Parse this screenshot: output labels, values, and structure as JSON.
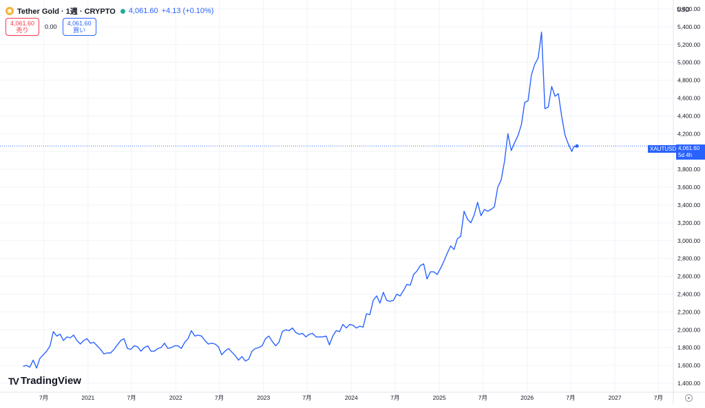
{
  "header": {
    "title": "Tether Gold · 1週 · CRYPTO",
    "price": "4,061.60",
    "change": "+4.13 (+0.10%)"
  },
  "trade": {
    "sell_price": "4,061.60",
    "sell_label": "売り",
    "spread": "0.00",
    "buy_price": "4,061.60",
    "buy_label": "買い"
  },
  "currency": "USD",
  "price_tag": {
    "symbol": "XAUTUSD",
    "price": "4,061.60",
    "countdown": "5d 4h"
  },
  "logo": {
    "text": "TradingView"
  },
  "colors": {
    "line": "#2962ff",
    "grid": "#f0f3fa",
    "axis_text": "#131722"
  },
  "chart_data": {
    "type": "line",
    "series": [
      {
        "values": [
          [
            "2020-04-06",
            1590
          ],
          [
            "2020-04-20",
            1600
          ],
          [
            "2020-05-04",
            1580
          ],
          [
            "2020-05-18",
            1660
          ],
          [
            "2020-06-01",
            1570
          ],
          [
            "2020-06-15",
            1680
          ],
          [
            "2020-06-29",
            1720
          ],
          [
            "2020-07-13",
            1760
          ],
          [
            "2020-07-27",
            1820
          ],
          [
            "2020-08-10",
            1980
          ],
          [
            "2020-08-24",
            1930
          ],
          [
            "2020-09-07",
            1950
          ],
          [
            "2020-09-21",
            1880
          ],
          [
            "2020-10-05",
            1920
          ],
          [
            "2020-10-19",
            1910
          ],
          [
            "2020-11-02",
            1940
          ],
          [
            "2020-11-16",
            1880
          ],
          [
            "2020-11-30",
            1840
          ],
          [
            "2020-12-14",
            1880
          ],
          [
            "2020-12-28",
            1900
          ],
          [
            "2021-01-11",
            1850
          ],
          [
            "2021-01-25",
            1860
          ],
          [
            "2021-02-08",
            1820
          ],
          [
            "2021-02-22",
            1780
          ],
          [
            "2021-03-08",
            1730
          ],
          [
            "2021-03-22",
            1740
          ],
          [
            "2021-04-05",
            1740
          ],
          [
            "2021-04-19",
            1780
          ],
          [
            "2021-05-03",
            1830
          ],
          [
            "2021-05-17",
            1880
          ],
          [
            "2021-05-31",
            1900
          ],
          [
            "2021-06-14",
            1790
          ],
          [
            "2021-06-28",
            1780
          ],
          [
            "2021-07-12",
            1820
          ],
          [
            "2021-07-26",
            1810
          ],
          [
            "2021-08-09",
            1760
          ],
          [
            "2021-08-23",
            1800
          ],
          [
            "2021-09-06",
            1820
          ],
          [
            "2021-09-20",
            1760
          ],
          [
            "2021-10-04",
            1760
          ],
          [
            "2021-10-18",
            1790
          ],
          [
            "2021-11-01",
            1800
          ],
          [
            "2021-11-15",
            1850
          ],
          [
            "2021-11-29",
            1790
          ],
          [
            "2021-12-13",
            1800
          ],
          [
            "2021-12-27",
            1820
          ],
          [
            "2022-01-10",
            1820
          ],
          [
            "2022-01-24",
            1790
          ],
          [
            "2022-02-07",
            1860
          ],
          [
            "2022-02-21",
            1900
          ],
          [
            "2022-03-07",
            1990
          ],
          [
            "2022-03-21",
            1930
          ],
          [
            "2022-04-04",
            1940
          ],
          [
            "2022-04-18",
            1930
          ],
          [
            "2022-05-02",
            1880
          ],
          [
            "2022-05-16",
            1840
          ],
          [
            "2022-05-30",
            1850
          ],
          [
            "2022-06-13",
            1840
          ],
          [
            "2022-06-27",
            1810
          ],
          [
            "2022-07-11",
            1720
          ],
          [
            "2022-07-25",
            1760
          ],
          [
            "2022-08-08",
            1790
          ],
          [
            "2022-08-22",
            1750
          ],
          [
            "2022-09-05",
            1710
          ],
          [
            "2022-09-19",
            1660
          ],
          [
            "2022-10-03",
            1700
          ],
          [
            "2022-10-17",
            1650
          ],
          [
            "2022-10-31",
            1670
          ],
          [
            "2022-11-14",
            1760
          ],
          [
            "2022-11-28",
            1790
          ],
          [
            "2022-12-12",
            1800
          ],
          [
            "2022-12-26",
            1820
          ],
          [
            "2023-01-09",
            1900
          ],
          [
            "2023-01-23",
            1930
          ],
          [
            "2023-02-06",
            1870
          ],
          [
            "2023-02-20",
            1820
          ],
          [
            "2023-03-06",
            1860
          ],
          [
            "2023-03-20",
            1980
          ],
          [
            "2023-04-03",
            2000
          ],
          [
            "2023-04-17",
            1990
          ],
          [
            "2023-05-01",
            2020
          ],
          [
            "2023-05-15",
            1970
          ],
          [
            "2023-05-29",
            1950
          ],
          [
            "2023-06-12",
            1960
          ],
          [
            "2023-06-26",
            1920
          ],
          [
            "2023-07-10",
            1950
          ],
          [
            "2023-07-24",
            1960
          ],
          [
            "2023-08-07",
            1920
          ],
          [
            "2023-08-21",
            1920
          ],
          [
            "2023-09-04",
            1920
          ],
          [
            "2023-09-18",
            1930
          ],
          [
            "2023-10-02",
            1830
          ],
          [
            "2023-10-16",
            1930
          ],
          [
            "2023-10-30",
            1990
          ],
          [
            "2023-11-13",
            1980
          ],
          [
            "2023-11-27",
            2060
          ],
          [
            "2023-12-11",
            2020
          ],
          [
            "2023-12-25",
            2060
          ],
          [
            "2024-01-08",
            2050
          ],
          [
            "2024-01-22",
            2020
          ],
          [
            "2024-02-05",
            2040
          ],
          [
            "2024-02-19",
            2030
          ],
          [
            "2024-03-04",
            2180
          ],
          [
            "2024-03-18",
            2170
          ],
          [
            "2024-04-01",
            2330
          ],
          [
            "2024-04-15",
            2380
          ],
          [
            "2024-04-29",
            2300
          ],
          [
            "2024-05-13",
            2420
          ],
          [
            "2024-05-27",
            2330
          ],
          [
            "2024-06-10",
            2320
          ],
          [
            "2024-06-24",
            2330
          ],
          [
            "2024-07-08",
            2400
          ],
          [
            "2024-07-22",
            2380
          ],
          [
            "2024-08-05",
            2440
          ],
          [
            "2024-08-19",
            2510
          ],
          [
            "2024-09-02",
            2500
          ],
          [
            "2024-09-16",
            2620
          ],
          [
            "2024-09-30",
            2660
          ],
          [
            "2024-10-14",
            2720
          ],
          [
            "2024-10-28",
            2740
          ],
          [
            "2024-11-11",
            2570
          ],
          [
            "2024-11-25",
            2650
          ],
          [
            "2024-12-09",
            2650
          ],
          [
            "2024-12-23",
            2620
          ],
          [
            "2025-01-06",
            2690
          ],
          [
            "2025-01-20",
            2770
          ],
          [
            "2025-02-03",
            2860
          ],
          [
            "2025-02-17",
            2940
          ],
          [
            "2025-03-03",
            2900
          ],
          [
            "2025-03-17",
            3020
          ],
          [
            "2025-03-31",
            3050
          ],
          [
            "2025-04-14",
            3330
          ],
          [
            "2025-04-28",
            3240
          ],
          [
            "2025-05-12",
            3200
          ],
          [
            "2025-05-26",
            3290
          ],
          [
            "2025-06-09",
            3430
          ],
          [
            "2025-06-23",
            3280
          ],
          [
            "2025-07-07",
            3350
          ],
          [
            "2025-07-21",
            3330
          ],
          [
            "2025-08-04",
            3350
          ],
          [
            "2025-08-18",
            3380
          ],
          [
            "2025-09-01",
            3600
          ],
          [
            "2025-09-15",
            3680
          ],
          [
            "2025-09-29",
            3890
          ],
          [
            "2025-10-13",
            4200
          ],
          [
            "2025-10-27",
            4010
          ],
          [
            "2025-11-10",
            4100
          ],
          [
            "2025-11-24",
            4180
          ],
          [
            "2025-12-08",
            4300
          ],
          [
            "2025-12-22",
            4550
          ],
          [
            "2026-01-05",
            4570
          ],
          [
            "2026-01-19",
            4860
          ],
          [
            "2026-02-02",
            4980
          ],
          [
            "2026-02-16",
            5050
          ],
          [
            "2026-03-02",
            5340
          ],
          [
            "2026-03-16",
            4480
          ],
          [
            "2026-03-30",
            4500
          ],
          [
            "2026-04-13",
            4730
          ],
          [
            "2026-04-27",
            4620
          ],
          [
            "2026-05-11",
            4650
          ],
          [
            "2026-05-25",
            4390
          ],
          [
            "2026-06-08",
            4180
          ],
          [
            "2026-06-22",
            4080
          ],
          [
            "2026-07-06",
            4000
          ],
          [
            "2026-07-13",
            4050
          ],
          [
            "2026-07-27",
            4062
          ]
        ]
      }
    ],
    "y_ticks": [
      1400,
      1600,
      1800,
      2000,
      2200,
      2400,
      2600,
      2800,
      3000,
      3200,
      3400,
      3600,
      3800,
      4000,
      4200,
      4400,
      4600,
      4800,
      5000,
      5200,
      5400,
      5600
    ],
    "y_tick_labels": [
      "1,400.00",
      "1,600.00",
      "1,800.00",
      "2,000.00",
      "2,200.00",
      "2,400.00",
      "2,600.00",
      "2,800.00",
      "3,000.00",
      "3,200.00",
      "3,400.00",
      "3,600.00",
      "3,800.00",
      "4,000.00",
      "4,200.00",
      "4,400.00",
      "4,600.00",
      "4,800.00",
      "5,000.00",
      "5,200.00",
      "5,400.00",
      "5,600.00"
    ],
    "x_ticks": [
      {
        "date": "2020-07-01",
        "label": "7月"
      },
      {
        "date": "2021-01-01",
        "label": "2021"
      },
      {
        "date": "2021-07-01",
        "label": "7月"
      },
      {
        "date": "2022-01-01",
        "label": "2022"
      },
      {
        "date": "2022-07-01",
        "label": "7月"
      },
      {
        "date": "2023-01-01",
        "label": "2023"
      },
      {
        "date": "2023-07-01",
        "label": "7月"
      },
      {
        "date": "2024-01-01",
        "label": "2024"
      },
      {
        "date": "2024-07-01",
        "label": "7月"
      },
      {
        "date": "2025-01-01",
        "label": "2025"
      },
      {
        "date": "2025-07-01",
        "label": "7月"
      },
      {
        "date": "2026-01-01",
        "label": "2026"
      },
      {
        "date": "2026-07-01",
        "label": "7月"
      },
      {
        "date": "2027-01-01",
        "label": "2027"
      },
      {
        "date": "2027-07-01",
        "label": "7月"
      }
    ],
    "xlim": [
      "2020-01-01",
      "2027-09-01"
    ],
    "ylim": [
      1300,
      5700
    ],
    "last_price": 4061.6,
    "grid": true
  }
}
